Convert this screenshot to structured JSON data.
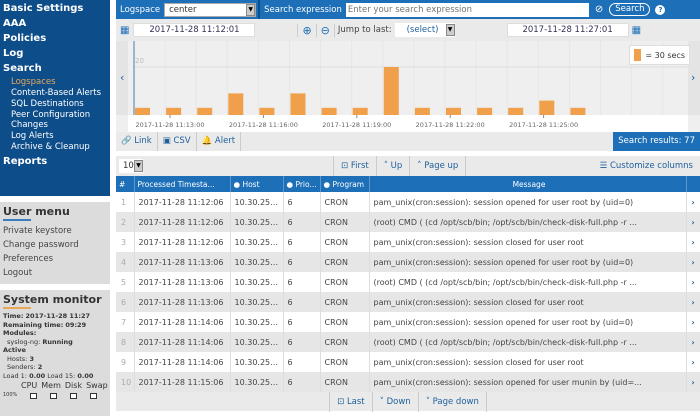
{
  "sidebar": {
    "items": [
      {
        "label": "Basic Settings"
      },
      {
        "label": "AAA"
      },
      {
        "label": "Policies"
      },
      {
        "label": "Log"
      },
      {
        "label": "Search"
      }
    ],
    "sub_items": [
      {
        "label": "Logspaces",
        "active": true
      },
      {
        "label": "Content-Based Alerts"
      },
      {
        "label": "SQL Destinations"
      },
      {
        "label": "Peer Configuration Changes"
      },
      {
        "label": "Log Alerts"
      },
      {
        "label": "Archive & Cleanup"
      }
    ],
    "reports": "Reports"
  },
  "user_menu": {
    "title": "User menu",
    "items": [
      "Private keystore",
      "Change password",
      "Preferences",
      "Logout"
    ]
  },
  "system_monitor": {
    "title": "System monitor",
    "time_label": "Time:",
    "time": "2017-11-28 11:27",
    "remaining_label": "Remaining time:",
    "remaining": "09:29",
    "modules_label": "Modules:",
    "syslog_label": "syslog-ng:",
    "syslog": "Running",
    "active_label": "Active",
    "hosts_label": "Hosts:",
    "hosts": "3",
    "senders_label": "Senders:",
    "senders": "2",
    "load1_label": "Load 1:",
    "load1": "0.00",
    "load15_label": "Load 15:",
    "load15": "0.00",
    "meters": [
      "CPU",
      "Mem",
      "Disk",
      "Swap"
    ],
    "scale": "100%"
  },
  "topbar": {
    "logspace_label": "Logspace",
    "logspace_value": "center",
    "search_label": "Search expression",
    "search_placeholder": "Enter your search expression",
    "search_button": "Search"
  },
  "datebar": {
    "from": "2017-11-28 11:12:01",
    "to": "2017-11-28 11:27:01",
    "jump_label": "Jump to last:",
    "jump_value": "(select)"
  },
  "chart_data": {
    "type": "bar",
    "legend": "= 30 secs",
    "ytick": "20",
    "values": [
      3,
      3,
      3,
      9,
      3,
      9,
      3,
      3,
      20,
      3,
      3,
      3,
      3,
      6,
      3
    ],
    "xticks": [
      "2017-11-28 11:13:00",
      "2017-11-28 11:16:00",
      "2017-11-28 11:19:00",
      "2017-11-28 11:22:00",
      "2017-11-28 11:25:00"
    ],
    "color": "#f0a04b"
  },
  "linkbar": {
    "link": "Link",
    "csv": "CSV",
    "alert": "Alert",
    "results": "Search results: 77"
  },
  "toolbar": {
    "page_size": "10",
    "first": "First",
    "up": "Up",
    "page_up": "Page up",
    "customize": "Customize columns"
  },
  "table": {
    "headers": [
      "#",
      "Processed Timesta...",
      "Host",
      "Prio...",
      "Program",
      "Message"
    ],
    "rows": [
      [
        "1",
        "2017-11-28 11:12:06",
        "10.30.255....",
        "6",
        "CRON",
        "pam_unix(cron:session): session opened for user root by (uid=0)"
      ],
      [
        "2",
        "2017-11-28 11:12:06",
        "10.30.255....",
        "6",
        "CRON",
        "(root) CMD ( (cd /opt/scb/bin; /opt/scb/bin/check-disk-full.php -r ..."
      ],
      [
        "3",
        "2017-11-28 11:12:06",
        "10.30.255....",
        "6",
        "CRON",
        "pam_unix(cron:session): session closed for user root"
      ],
      [
        "4",
        "2017-11-28 11:13:06",
        "10.30.255....",
        "6",
        "CRON",
        "pam_unix(cron:session): session opened for user root by (uid=0)"
      ],
      [
        "5",
        "2017-11-28 11:13:06",
        "10.30.255....",
        "6",
        "CRON",
        "(root) CMD ( (cd /opt/scb/bin; /opt/scb/bin/check-disk-full.php -r ..."
      ],
      [
        "6",
        "2017-11-28 11:13:06",
        "10.30.255....",
        "6",
        "CRON",
        "pam_unix(cron:session): session closed for user root"
      ],
      [
        "7",
        "2017-11-28 11:14:06",
        "10.30.255....",
        "6",
        "CRON",
        "pam_unix(cron:session): session opened for user root by (uid=0)"
      ],
      [
        "8",
        "2017-11-28 11:14:06",
        "10.30.255....",
        "6",
        "CRON",
        "(root) CMD ( (cd /opt/scb/bin; /opt/scb/bin/check-disk-full.php -r ..."
      ],
      [
        "9",
        "2017-11-28 11:14:06",
        "10.30.255....",
        "6",
        "CRON",
        "pam_unix(cron:session): session closed for user root"
      ],
      [
        "10",
        "2017-11-28 11:15:06",
        "10.30.255....",
        "6",
        "CRON",
        "pam_unix(cron:session): session opened for user munin by (uid=..."
      ]
    ]
  },
  "bottombar": {
    "last": "Last",
    "down": "Down",
    "page_down": "Page down"
  }
}
